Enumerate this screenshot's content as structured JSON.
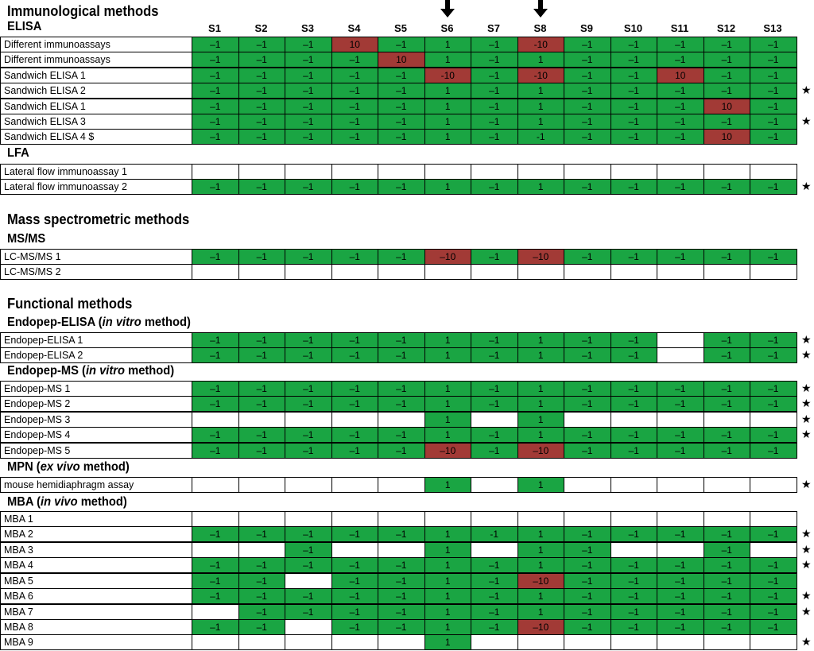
{
  "columns": [
    "S1",
    "S2",
    "S3",
    "S4",
    "S5",
    "S6",
    "S7",
    "S8",
    "S9",
    "S10",
    "S11",
    "S12",
    "S13"
  ],
  "arrow_columns": [
    5,
    7
  ],
  "colors": {
    "positive": "#1aa543",
    "negative": "#a23a36",
    "empty": "#ffffff"
  },
  "star_symbol": "★",
  "headings": {
    "immuno": "Immunological methods",
    "elisa": "ELISA",
    "lfa": "LFA",
    "mass": "Mass spectrometric methods",
    "msms": "MS/MS",
    "functional": "Functional methods",
    "endopep_elisa": "Endopep-ELISA (",
    "endopep_elisa_it": "in vitro",
    "endopep_elisa_end": " method)",
    "endopep_ms": "Endopep-MS (",
    "endopep_ms_it": "in vitro",
    "endopep_ms_end": " method)",
    "mpn": "MPN (",
    "mpn_it": "ex vivo",
    "mpn_end": " method)",
    "mba": "MBA (",
    "mba_it": "in vivo",
    "mba_end": " method)"
  },
  "rows": [
    {
      "label": "Different immunoassays",
      "star": false,
      "cells": [
        "–1",
        "–1",
        "–1",
        "10",
        "–1",
        "1",
        "–1",
        "-10",
        "–1",
        "–1",
        "–1",
        "–1",
        "–1"
      ]
    },
    {
      "label": "Different immunoassays",
      "star": false,
      "cells": [
        "–1",
        "–1",
        "–1",
        "–1",
        "10",
        "1",
        "–1",
        "1",
        "–1",
        "–1",
        "–1",
        "–1",
        "–1"
      ]
    },
    {
      "label": "Sandwich ELISA 1",
      "star": false,
      "cells": [
        "–1",
        "–1",
        "–1",
        "–1",
        "–1",
        "-10",
        "–1",
        "-10",
        "–1",
        "–1",
        "10",
        "–1",
        "–1"
      ]
    },
    {
      "label": "Sandwich ELISA 2",
      "star": true,
      "cells": [
        "–1",
        "–1",
        "–1",
        "–1",
        "–1",
        "1",
        "–1",
        "1",
        "–1",
        "–1",
        "–1",
        "–1",
        "–1"
      ]
    },
    {
      "label": "Sandwich ELISA 1",
      "star": false,
      "cells": [
        "–1",
        "–1",
        "–1",
        "–1",
        "–1",
        "1",
        "–1",
        "1",
        "–1",
        "–1",
        "–1",
        "10",
        "–1"
      ]
    },
    {
      "label": "Sandwich ELISA 3",
      "star": true,
      "cells": [
        "–1",
        "–1",
        "–1",
        "–1",
        "–1",
        "1",
        "–1",
        "1",
        "–1",
        "–1",
        "–1",
        "–1",
        "–1"
      ]
    },
    {
      "label": "Sandwich ELISA 4  $",
      "star": false,
      "cells": [
        "–1",
        "–1",
        "–1",
        "–1",
        "–1",
        "1",
        "–1",
        "-1",
        "–1",
        "–1",
        "–1",
        "10",
        "–1"
      ]
    },
    {
      "label": "Lateral flow immunoassay 1",
      "star": false,
      "cells": [
        "",
        "",
        "",
        "",
        "",
        "",
        "",
        "",
        "",
        "",
        "",
        "",
        ""
      ]
    },
    {
      "label": "Lateral flow immunoassay 2",
      "star": true,
      "cells": [
        "–1",
        "–1",
        "–1",
        "–1",
        "–1",
        "1",
        "–1",
        "1",
        "–1",
        "–1",
        "–1",
        "–1",
        "–1"
      ]
    },
    {
      "label": "LC-MS/MS 1",
      "star": false,
      "cells": [
        "–1",
        "–1",
        "–1",
        "–1",
        "–1",
        "–10",
        "–1",
        "–10",
        "–1",
        "–1",
        "–1",
        "–1",
        "–1"
      ]
    },
    {
      "label": "LC-MS/MS 2",
      "star": false,
      "cells": [
        "",
        "",
        "",
        "",
        "",
        "",
        "",
        "",
        "",
        "",
        "",
        "",
        ""
      ]
    },
    {
      "label": "Endopep-ELISA 1",
      "star": true,
      "cells": [
        "–1",
        "–1",
        "–1",
        "–1",
        "–1",
        "1",
        "–1",
        "1",
        "–1",
        "–1",
        "",
        "–1",
        "–1"
      ]
    },
    {
      "label": "Endopep-ELISA 2",
      "star": true,
      "cells": [
        "–1",
        "–1",
        "–1",
        "–1",
        "–1",
        "1",
        "–1",
        "1",
        "–1",
        "–1",
        "",
        "–1",
        "–1"
      ]
    },
    {
      "label": "Endopep-MS 1",
      "star": true,
      "cells": [
        "–1",
        "–1",
        "–1",
        "–1",
        "–1",
        "1",
        "–1",
        "1",
        "–1",
        "–1",
        "–1",
        "–1",
        "–1"
      ]
    },
    {
      "label": "Endopep-MS 2",
      "star": true,
      "cells": [
        "–1",
        "–1",
        "–1",
        "–1",
        "–1",
        "1",
        "–1",
        "1",
        "–1",
        "–1",
        "–1",
        "–1",
        "–1"
      ]
    },
    {
      "label": "Endopep-MS 3",
      "star": true,
      "cells": [
        "",
        "",
        "",
        "",
        "",
        "1",
        "",
        "1",
        "",
        "",
        "",
        "",
        ""
      ]
    },
    {
      "label": "Endopep-MS 4",
      "star": true,
      "cells": [
        "–1",
        "–1",
        "–1",
        "–1",
        "–1",
        "1",
        "–1",
        "1",
        "–1",
        "–1",
        "–1",
        "–1",
        "–1"
      ]
    },
    {
      "label": "Endopep-MS 5",
      "star": false,
      "cells": [
        "–1",
        "–1",
        "–1",
        "–1",
        "–1",
        "–10",
        "–1",
        "–10",
        "–1",
        "–1",
        "–1",
        "–1",
        "–1"
      ]
    },
    {
      "label": "mouse hemidiaphragm assay",
      "star": true,
      "cells": [
        "",
        "",
        "",
        "",
        "",
        "1",
        "",
        "1",
        "",
        "",
        "",
        "",
        ""
      ]
    },
    {
      "label": "MBA 1",
      "star": false,
      "cells": [
        "",
        "",
        "",
        "",
        "",
        "",
        "",
        "",
        "",
        "",
        "",
        "",
        ""
      ]
    },
    {
      "label": "MBA 2",
      "star": true,
      "cells": [
        "–1",
        "–1",
        "–1",
        "–1",
        "–1",
        "1",
        "-1",
        "1",
        "–1",
        "–1",
        "–1",
        "–1",
        "–1"
      ]
    },
    {
      "label": "MBA 3",
      "star": true,
      "cells": [
        "",
        "",
        "–1",
        "",
        "",
        "1",
        "",
        "1",
        "–1",
        "",
        "",
        "–1",
        ""
      ]
    },
    {
      "label": "MBA 4",
      "star": true,
      "cells": [
        "–1",
        "–1",
        "–1",
        "–1",
        "–1",
        "1",
        "–1",
        "1",
        "–1",
        "–1",
        "–1",
        "–1",
        "–1"
      ]
    },
    {
      "label": "MBA 5",
      "star": false,
      "cells": [
        "–1",
        "–1",
        "",
        "–1",
        "–1",
        "1",
        "–1",
        "–10",
        "–1",
        "–1",
        "–1",
        "–1",
        "–1"
      ]
    },
    {
      "label": "MBA 6",
      "star": true,
      "cells": [
        "–1",
        "–1",
        "–1",
        "–1",
        "–1",
        "1",
        "–1",
        "1",
        "–1",
        "–1",
        "–1",
        "–1",
        "–1"
      ]
    },
    {
      "label": "MBA 7",
      "star": true,
      "cells": [
        "",
        "–1",
        "–1",
        "–1",
        "–1",
        "1",
        "–1",
        "1",
        "–1",
        "–1",
        "–1",
        "–1",
        "–1"
      ]
    },
    {
      "label": "MBA 8",
      "star": false,
      "cells": [
        "–1",
        "–1",
        "",
        "–1",
        "–1",
        "1",
        "–1",
        "–10",
        "–1",
        "–1",
        "–1",
        "–1",
        "–1"
      ]
    },
    {
      "label": "MBA 9",
      "star": true,
      "cells": [
        "",
        "",
        "",
        "",
        "",
        "1",
        "",
        "",
        "",
        "",
        "",
        "",
        ""
      ]
    }
  ]
}
